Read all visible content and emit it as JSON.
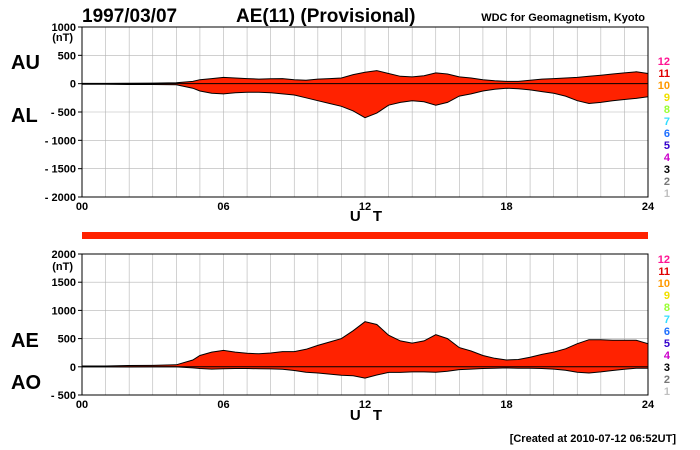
{
  "header": {
    "date": "1997/03/07",
    "title": "AE(11) (Provisional)",
    "org": "WDC for Geomagnetism, Kyoto",
    "footer": "[Created at 2010-07-12 06:52UT]"
  },
  "color_scale": {
    "labels": [
      "12",
      "11",
      "10",
      "9",
      "8",
      "7",
      "6",
      "5",
      "4",
      "3",
      "2",
      "1"
    ],
    "colors": [
      "#ff1493",
      "#e00000",
      "#ff9900",
      "#f0e000",
      "#99ff33",
      "#33ddff",
      "#1e6fff",
      "#3300cc",
      "#cc00cc",
      "#000000",
      "#777777",
      "#c0c0c0"
    ]
  },
  "colors": {
    "fill": "#ff2200",
    "envelope": "#000000",
    "bar": "#ff2200",
    "grid": "#b4b4b4"
  },
  "chart_data": [
    {
      "type": "area",
      "panel": "AU/AL",
      "side_labels": [
        "AU",
        "AL"
      ],
      "unit": "(nT)",
      "xlabel": "U T",
      "x_ticks": [
        "00",
        "06",
        "12",
        "18",
        "24"
      ],
      "xlim": [
        0,
        24
      ],
      "ylim": [
        -2000,
        1000
      ],
      "y_ticks": [
        "1000",
        "500",
        "0",
        "- 500",
        "- 1000",
        "- 1500",
        "- 2000"
      ],
      "grid": true,
      "x_hours": [
        0,
        1,
        2,
        3,
        4,
        4.7,
        5,
        5.5,
        6,
        6.5,
        7,
        7.5,
        8,
        8.5,
        9,
        9.5,
        10,
        10.5,
        11,
        11.5,
        12,
        12.5,
        13,
        13.5,
        14,
        14.5,
        15,
        15.5,
        16,
        16.5,
        17,
        17.5,
        18,
        18.5,
        19,
        19.5,
        20,
        20.5,
        21,
        21.5,
        22,
        22.5,
        23,
        23.5,
        24
      ],
      "series": [
        {
          "name": "AU",
          "values": [
            5,
            5,
            8,
            10,
            15,
            40,
            70,
            90,
            110,
            100,
            90,
            80,
            85,
            90,
            70,
            60,
            80,
            90,
            100,
            160,
            200,
            230,
            180,
            130,
            120,
            140,
            190,
            170,
            120,
            100,
            70,
            50,
            40,
            40,
            60,
            80,
            90,
            100,
            110,
            130,
            150,
            170,
            190,
            210,
            180
          ]
        },
        {
          "name": "AL",
          "values": [
            -10,
            -10,
            -15,
            -15,
            -20,
            -80,
            -130,
            -170,
            -180,
            -160,
            -150,
            -150,
            -160,
            -180,
            -200,
            -250,
            -300,
            -350,
            -400,
            -480,
            -600,
            -520,
            -380,
            -330,
            -300,
            -320,
            -380,
            -330,
            -220,
            -180,
            -130,
            -100,
            -80,
            -90,
            -110,
            -140,
            -170,
            -220,
            -300,
            -350,
            -330,
            -300,
            -280,
            -260,
            -230
          ]
        }
      ]
    },
    {
      "type": "area",
      "panel": "AE/AO",
      "side_labels": [
        "AE",
        "AO"
      ],
      "unit": "(nT)",
      "xlabel": "U T",
      "x_ticks": [
        "00",
        "06",
        "12",
        "18",
        "24"
      ],
      "xlim": [
        0,
        24
      ],
      "ylim": [
        -500,
        2000
      ],
      "y_ticks": [
        "2000",
        "1500",
        "1000",
        "500",
        "0",
        "- 500"
      ],
      "grid": true,
      "x_hours": [
        0,
        1,
        2,
        3,
        4,
        4.7,
        5,
        5.5,
        6,
        6.5,
        7,
        7.5,
        8,
        8.5,
        9,
        9.5,
        10,
        10.5,
        11,
        11.5,
        12,
        12.5,
        13,
        13.5,
        14,
        14.5,
        15,
        15.5,
        16,
        16.5,
        17,
        17.5,
        18,
        18.5,
        19,
        19.5,
        20,
        20.5,
        21,
        21.5,
        22,
        22.5,
        23,
        23.5,
        24
      ],
      "series": [
        {
          "name": "AE",
          "values": [
            15,
            15,
            23,
            25,
            35,
            120,
            200,
            260,
            290,
            260,
            240,
            230,
            245,
            270,
            270,
            310,
            380,
            440,
            500,
            640,
            800,
            750,
            560,
            460,
            420,
            460,
            570,
            500,
            340,
            280,
            200,
            150,
            120,
            130,
            170,
            220,
            260,
            320,
            410,
            480,
            480,
            470,
            470,
            470,
            410
          ]
        },
        {
          "name": "AO",
          "values": [
            -2,
            -2,
            -3,
            -2,
            -2,
            -20,
            -30,
            -40,
            -35,
            -30,
            -30,
            -35,
            -37,
            -45,
            -65,
            -95,
            -110,
            -130,
            -150,
            -160,
            -200,
            -145,
            -100,
            -100,
            -90,
            -90,
            -95,
            -80,
            -50,
            -40,
            -30,
            -25,
            -20,
            -25,
            -25,
            -30,
            -40,
            -60,
            -95,
            -110,
            -90,
            -65,
            -45,
            -25,
            -25
          ]
        }
      ]
    }
  ]
}
